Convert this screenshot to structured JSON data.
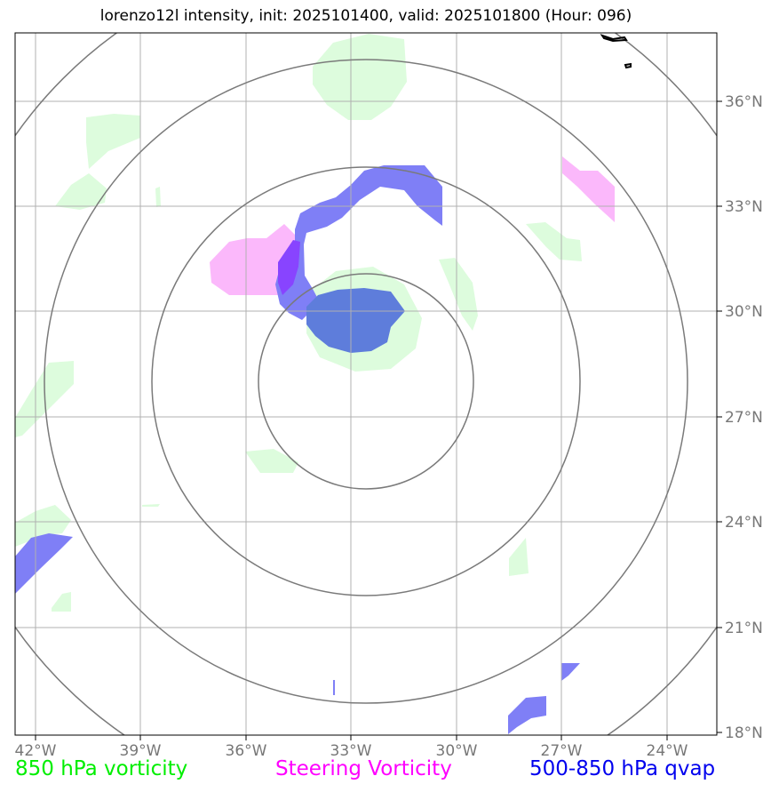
{
  "title": "lorenzo12l intensity, init: 2025101400, valid: 2025101800 (Hour: 096)",
  "axes": {
    "lon_labels": [
      "42°W",
      "39°W",
      "36°W",
      "33°W",
      "30°W",
      "27°W",
      "24°W"
    ],
    "lat_labels": [
      "36°N",
      "33°N",
      "30°N",
      "27°N",
      "24°N",
      "21°N",
      "18°N"
    ]
  },
  "legend": {
    "green": {
      "label": "850 hPa vorticity",
      "color": "#00ee00"
    },
    "pink": {
      "label": "Steering Vorticity",
      "color": "#ff00ff"
    },
    "blue": {
      "label": "500-850 hPa qvap",
      "color": "#0000ee"
    }
  },
  "colors": {
    "vort_fill": "#ddfcdd",
    "steer_fill": "#fbb8fb",
    "qvap_fill": "#7f7ff6",
    "qvap_dense": "#5e7ddb",
    "overlap_fill": "#8844ff",
    "ring_stroke": "#7a7a7a",
    "grid_stroke": "#b0b0b0"
  },
  "map": {
    "lon_range": [
      "42.6°W",
      "22.6°W"
    ],
    "lat_range": [
      "18°N",
      "38°N"
    ],
    "range_rings": 4
  }
}
